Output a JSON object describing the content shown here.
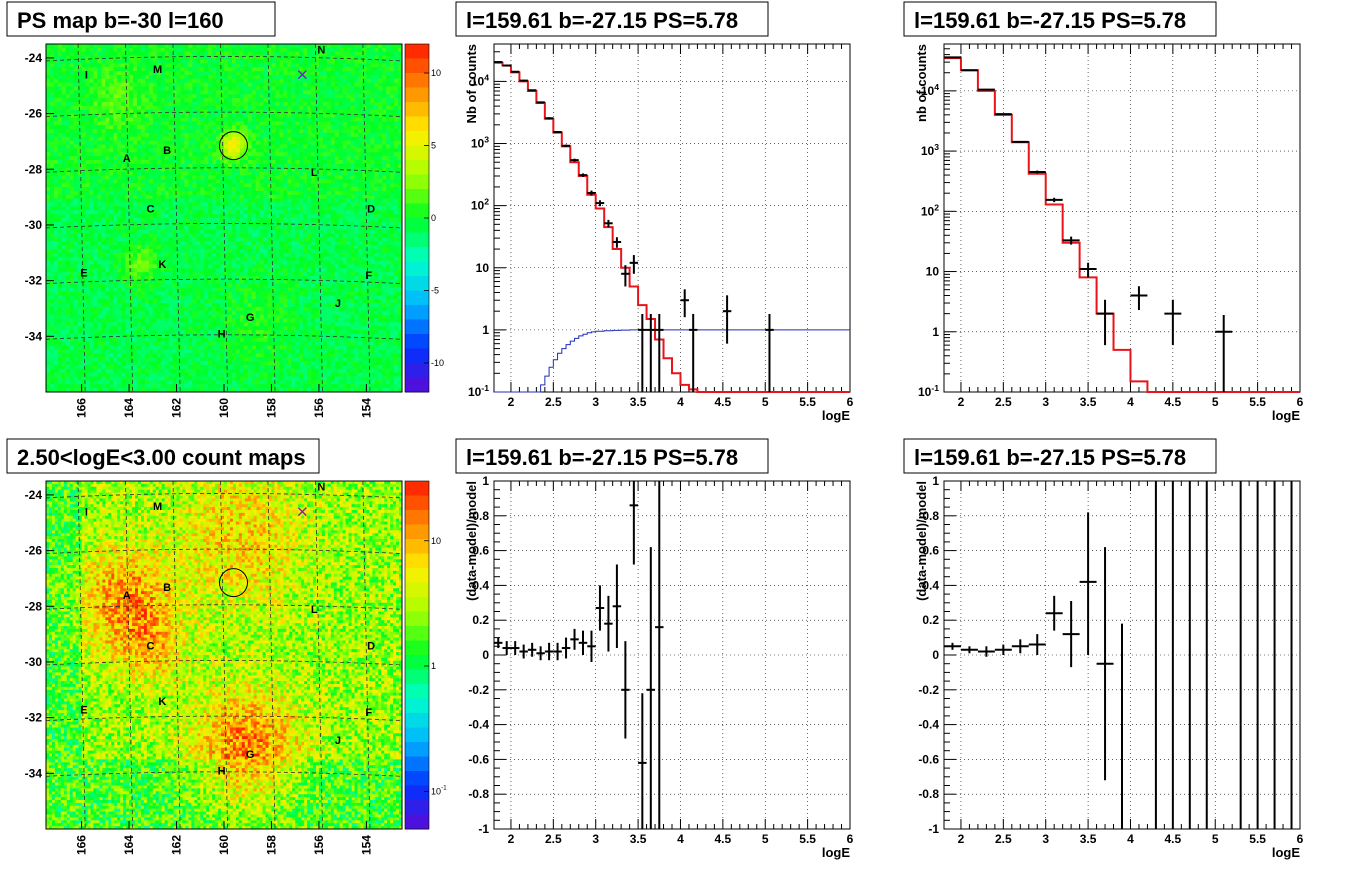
{
  "chart_data": [
    {
      "type": "heatmap",
      "title": "PS map b=-30 l=160",
      "xticks": [
        "166",
        "164",
        "162",
        "160",
        "158",
        "156",
        "154"
      ],
      "yticks": [
        "-24",
        "-26",
        "-28",
        "-30",
        "-32",
        "-34"
      ],
      "xlim": [
        167.5,
        152.5
      ],
      "ylim": [
        -36,
        -23.5
      ],
      "colorbar_ticks": [
        "10",
        "5",
        "0",
        "-5",
        "-10"
      ],
      "colorbar_range": [
        -12,
        12
      ],
      "colormap": [
        "#5c0ad6",
        "#0033ff",
        "#00b4ff",
        "#00ffcc",
        "#00ff22",
        "#aaff00",
        "#ffee00",
        "#ff8800",
        "#ff1a00"
      ],
      "regions": [
        {
          "label": "I",
          "l": 165.8,
          "b": -24.6
        },
        {
          "label": "M",
          "l": 162.8,
          "b": -24.4
        },
        {
          "label": "N",
          "l": 155.9,
          "b": -23.7
        },
        {
          "label": "A",
          "l": 164.1,
          "b": -27.6
        },
        {
          "label": "B",
          "l": 162.4,
          "b": -27.3
        },
        {
          "label": "L",
          "l": 156.2,
          "b": -28.1
        },
        {
          "label": "C",
          "l": 163.1,
          "b": -29.4
        },
        {
          "label": "D",
          "l": 153.8,
          "b": -29.4
        },
        {
          "label": "E",
          "l": 165.9,
          "b": -31.7
        },
        {
          "label": "K",
          "l": 162.6,
          "b": -31.4
        },
        {
          "label": "F",
          "l": 153.9,
          "b": -31.8
        },
        {
          "label": "J",
          "l": 155.2,
          "b": -32.8
        },
        {
          "label": "G",
          "l": 158.9,
          "b": -33.3
        },
        {
          "label": "H",
          "l": 160.1,
          "b": -33.9
        }
      ],
      "circle": {
        "l": 159.6,
        "b": -27.15
      },
      "cross": {
        "l": 156.7,
        "b": -24.6
      }
    },
    {
      "type": "line",
      "title": "l=159.61 b=-27.15 PS=5.78",
      "xlabel": "logE",
      "ylabel": "Nb of counts",
      "yscale": "log",
      "xlim": [
        1.8,
        6
      ],
      "ylim": [
        0.1,
        40000
      ],
      "xticks": [
        "2",
        "2.5",
        "3",
        "3.5",
        "4",
        "4.5",
        "5",
        "5.5",
        "6"
      ],
      "yticks": [
        "10^-1",
        "1",
        "10",
        "10^2",
        "10^3",
        "10^4"
      ],
      "model_step": {
        "edges": [
          1.8,
          1.9,
          2.0,
          2.1,
          2.2,
          2.3,
          2.4,
          2.5,
          2.6,
          2.7,
          2.8,
          2.9,
          3.0,
          3.1,
          3.2,
          3.3,
          3.4,
          3.5,
          3.6,
          3.7,
          3.8,
          3.9,
          4.0,
          4.1,
          4.2,
          6.0
        ],
        "values": [
          20000,
          18000,
          14000,
          10000,
          7000,
          4500,
          2500,
          1500,
          900,
          500,
          300,
          150,
          90,
          45,
          20,
          10,
          5,
          2.5,
          1.5,
          0.7,
          0.35,
          0.2,
          0.13,
          0.11,
          0.1
        ]
      },
      "psf_step": {
        "edges": [
          1.8,
          2.35,
          2.4,
          2.45,
          2.5,
          2.55,
          2.6,
          2.65,
          2.7,
          2.75,
          2.8,
          2.85,
          2.9,
          2.95,
          3.0,
          3.1,
          3.2,
          3.3,
          3.4,
          6.0
        ],
        "values": [
          0.1,
          0.13,
          0.18,
          0.25,
          0.33,
          0.42,
          0.5,
          0.58,
          0.66,
          0.73,
          0.8,
          0.85,
          0.9,
          0.93,
          0.95,
          0.97,
          0.98,
          0.99,
          1.0
        ]
      },
      "points": [
        {
          "x": 1.85,
          "y": 20500,
          "lo": 20000,
          "hi": 21000,
          "xerr": 0.05
        },
        {
          "x": 1.95,
          "y": 18000,
          "lo": 17600,
          "hi": 18400,
          "xerr": 0.05
        },
        {
          "x": 2.05,
          "y": 14300,
          "lo": 14000,
          "hi": 14600,
          "xerr": 0.05
        },
        {
          "x": 2.15,
          "y": 10300,
          "lo": 10000,
          "hi": 10600,
          "xerr": 0.05
        },
        {
          "x": 2.25,
          "y": 7200,
          "lo": 7000,
          "hi": 7400,
          "xerr": 0.05
        },
        {
          "x": 2.35,
          "y": 4600,
          "lo": 4450,
          "hi": 4750,
          "xerr": 0.05
        },
        {
          "x": 2.45,
          "y": 2550,
          "lo": 2450,
          "hi": 2650,
          "xerr": 0.05
        },
        {
          "x": 2.55,
          "y": 1530,
          "lo": 1480,
          "hi": 1580,
          "xerr": 0.05
        },
        {
          "x": 2.65,
          "y": 920,
          "lo": 880,
          "hi": 960,
          "xerr": 0.05
        },
        {
          "x": 2.75,
          "y": 540,
          "lo": 510,
          "hi": 570,
          "xerr": 0.05
        },
        {
          "x": 2.85,
          "y": 310,
          "lo": 290,
          "hi": 330,
          "xerr": 0.05
        },
        {
          "x": 2.95,
          "y": 160,
          "lo": 145,
          "hi": 175,
          "xerr": 0.05
        },
        {
          "x": 3.05,
          "y": 110,
          "lo": 98,
          "hi": 122,
          "xerr": 0.05
        },
        {
          "x": 3.15,
          "y": 52,
          "lo": 45,
          "hi": 59,
          "xerr": 0.05
        },
        {
          "x": 3.25,
          "y": 26,
          "lo": 21,
          "hi": 31,
          "xerr": 0.05
        },
        {
          "x": 3.35,
          "y": 8,
          "lo": 5,
          "hi": 11,
          "xerr": 0.05
        },
        {
          "x": 3.45,
          "y": 12,
          "lo": 8,
          "hi": 16,
          "xerr": 0.05
        },
        {
          "x": 3.55,
          "y": 1,
          "lo": 0.1,
          "hi": 1.8,
          "xerr": 0.05
        },
        {
          "x": 3.65,
          "y": 1,
          "lo": 0.1,
          "hi": 1.8,
          "xerr": 0.05
        },
        {
          "x": 3.75,
          "y": 1,
          "lo": 0.1,
          "hi": 1.8,
          "xerr": 0.05
        },
        {
          "x": 4.05,
          "y": 3,
          "lo": 1.6,
          "hi": 4.5,
          "xerr": 0.05
        },
        {
          "x": 4.15,
          "y": 1,
          "lo": 0.1,
          "hi": 1.8,
          "xerr": 0.05
        },
        {
          "x": 4.55,
          "y": 2,
          "lo": 0.6,
          "hi": 3.6,
          "xerr": 0.05
        },
        {
          "x": 5.05,
          "y": 1,
          "lo": 0.1,
          "hi": 1.8,
          "xerr": 0.05
        }
      ]
    },
    {
      "type": "line",
      "title": "l=159.61 b=-27.15 PS=5.78",
      "xlabel": "logE",
      "ylabel": "nb of counts",
      "yscale": "log",
      "xlim": [
        1.8,
        6
      ],
      "ylim": [
        0.1,
        60000
      ],
      "xticks": [
        "2",
        "2.5",
        "3",
        "3.5",
        "4",
        "4.5",
        "5",
        "5.5",
        "6"
      ],
      "yticks": [
        "10^-1",
        "1",
        "10",
        "10^2",
        "10^3",
        "10^4"
      ],
      "model_step": {
        "edges": [
          1.8,
          2.0,
          2.2,
          2.4,
          2.6,
          2.8,
          3.0,
          3.2,
          3.4,
          3.6,
          3.8,
          4.0,
          4.2,
          6.0
        ],
        "values": [
          35000,
          22000,
          10000,
          4000,
          1400,
          420,
          130,
          30,
          8,
          2,
          0.5,
          0.15,
          0.1
        ]
      },
      "points": [
        {
          "x": 1.9,
          "y": 36000,
          "lo": 35500,
          "hi": 36500,
          "xerr": 0.1
        },
        {
          "x": 2.1,
          "y": 22000,
          "lo": 21600,
          "hi": 22400,
          "xerr": 0.1
        },
        {
          "x": 2.3,
          "y": 10500,
          "lo": 10200,
          "hi": 10800,
          "xerr": 0.1
        },
        {
          "x": 2.5,
          "y": 4100,
          "lo": 3980,
          "hi": 4220,
          "xerr": 0.1
        },
        {
          "x": 2.7,
          "y": 1420,
          "lo": 1370,
          "hi": 1470,
          "xerr": 0.1
        },
        {
          "x": 2.9,
          "y": 450,
          "lo": 425,
          "hi": 475,
          "xerr": 0.1
        },
        {
          "x": 3.1,
          "y": 155,
          "lo": 142,
          "hi": 168,
          "xerr": 0.1
        },
        {
          "x": 3.3,
          "y": 33,
          "lo": 28,
          "hi": 38,
          "xerr": 0.1
        },
        {
          "x": 3.5,
          "y": 11,
          "lo": 8,
          "hi": 14,
          "xerr": 0.1
        },
        {
          "x": 3.7,
          "y": 2,
          "lo": 0.6,
          "hi": 3.4,
          "xerr": 0.1
        },
        {
          "x": 4.1,
          "y": 4,
          "lo": 2.3,
          "hi": 5.7,
          "xerr": 0.1
        },
        {
          "x": 4.5,
          "y": 2,
          "lo": 0.6,
          "hi": 3.4,
          "xerr": 0.1
        },
        {
          "x": 5.1,
          "y": 1,
          "lo": 0.1,
          "hi": 1.9,
          "xerr": 0.1
        }
      ]
    },
    {
      "type": "heatmap",
      "title": "2.50<logE<3.00 count maps",
      "xticks": [
        "166",
        "164",
        "162",
        "160",
        "158",
        "156",
        "154"
      ],
      "yticks": [
        "-24",
        "-26",
        "-28",
        "-30",
        "-32",
        "-34"
      ],
      "xlim": [
        167.5,
        152.5
      ],
      "ylim": [
        -36,
        -23.5
      ],
      "colorbar_ticks": [
        "10",
        "1",
        "10^-1"
      ],
      "colorbar_range": [
        0.05,
        30
      ],
      "colormap": [
        "#5c0ad6",
        "#0033ff",
        "#00b4ff",
        "#00ffcc",
        "#00ff22",
        "#aaff00",
        "#ffee00",
        "#ff8800",
        "#ff1a00"
      ],
      "regions": [
        {
          "label": "I",
          "l": 165.8,
          "b": -24.6
        },
        {
          "label": "M",
          "l": 162.8,
          "b": -24.4
        },
        {
          "label": "N",
          "l": 155.9,
          "b": -23.7
        },
        {
          "label": "A",
          "l": 164.1,
          "b": -27.6
        },
        {
          "label": "B",
          "l": 162.4,
          "b": -27.3
        },
        {
          "label": "L",
          "l": 156.2,
          "b": -28.1
        },
        {
          "label": "C",
          "l": 163.1,
          "b": -29.4
        },
        {
          "label": "D",
          "l": 153.8,
          "b": -29.4
        },
        {
          "label": "E",
          "l": 165.9,
          "b": -31.7
        },
        {
          "label": "K",
          "l": 162.6,
          "b": -31.4
        },
        {
          "label": "F",
          "l": 153.9,
          "b": -31.8
        },
        {
          "label": "J",
          "l": 155.2,
          "b": -32.8
        },
        {
          "label": "G",
          "l": 158.9,
          "b": -33.3
        },
        {
          "label": "H",
          "l": 160.1,
          "b": -33.9
        }
      ],
      "circle": {
        "l": 159.6,
        "b": -27.15
      },
      "cross": {
        "l": 156.7,
        "b": -24.6
      }
    },
    {
      "type": "scatter",
      "title": "l=159.61 b=-27.15 PS=5.78",
      "xlabel": "logE",
      "ylabel": "(data-model)/model",
      "xlim": [
        1.8,
        6
      ],
      "ylim": [
        -1,
        1
      ],
      "xticks": [
        "2",
        "2.5",
        "3",
        "3.5",
        "4",
        "4.5",
        "5",
        "5.5",
        "6"
      ],
      "yticks": [
        "-1",
        "-0.8",
        "-0.6",
        "-0.4",
        "-0.2",
        "0",
        "0.2",
        "0.4",
        "0.6",
        "0.8",
        "1"
      ],
      "points": [
        {
          "x": 1.85,
          "y": 0.07,
          "lo": 0.04,
          "hi": 0.1,
          "xerr": 0.05
        },
        {
          "x": 1.95,
          "y": 0.04,
          "lo": 0.0,
          "hi": 0.08,
          "xerr": 0.05
        },
        {
          "x": 2.05,
          "y": 0.04,
          "lo": 0.0,
          "hi": 0.08,
          "xerr": 0.05
        },
        {
          "x": 2.15,
          "y": 0.02,
          "lo": -0.02,
          "hi": 0.06,
          "xerr": 0.05
        },
        {
          "x": 2.25,
          "y": 0.03,
          "lo": -0.01,
          "hi": 0.07,
          "xerr": 0.05
        },
        {
          "x": 2.35,
          "y": 0.01,
          "lo": -0.03,
          "hi": 0.05,
          "xerr": 0.05
        },
        {
          "x": 2.45,
          "y": 0.02,
          "lo": -0.03,
          "hi": 0.07,
          "xerr": 0.05
        },
        {
          "x": 2.55,
          "y": 0.02,
          "lo": -0.03,
          "hi": 0.07,
          "xerr": 0.05
        },
        {
          "x": 2.65,
          "y": 0.04,
          "lo": -0.02,
          "hi": 0.1,
          "xerr": 0.05
        },
        {
          "x": 2.75,
          "y": 0.09,
          "lo": 0.03,
          "hi": 0.15,
          "xerr": 0.05
        },
        {
          "x": 2.85,
          "y": 0.07,
          "lo": 0.0,
          "hi": 0.14,
          "xerr": 0.05
        },
        {
          "x": 2.95,
          "y": 0.05,
          "lo": -0.04,
          "hi": 0.14,
          "xerr": 0.05
        },
        {
          "x": 3.05,
          "y": 0.27,
          "lo": 0.14,
          "hi": 0.4,
          "xerr": 0.05
        },
        {
          "x": 3.15,
          "y": 0.18,
          "lo": 0.02,
          "hi": 0.34,
          "xerr": 0.05
        },
        {
          "x": 3.25,
          "y": 0.28,
          "lo": 0.04,
          "hi": 0.52,
          "xerr": 0.05
        },
        {
          "x": 3.35,
          "y": -0.2,
          "lo": -0.48,
          "hi": 0.08,
          "xerr": 0.05
        },
        {
          "x": 3.45,
          "y": 0.86,
          "lo": 0.52,
          "hi": 1.0,
          "xerr": 0.05
        },
        {
          "x": 3.55,
          "y": -0.62,
          "lo": -1.0,
          "hi": -0.22,
          "xerr": 0.05
        },
        {
          "x": 3.65,
          "y": -0.2,
          "lo": -1.0,
          "hi": 0.62,
          "xerr": 0.05
        },
        {
          "x": 3.75,
          "y": 0.16,
          "lo": -1.0,
          "hi": 1.0,
          "xerr": 0.05
        }
      ]
    },
    {
      "type": "scatter",
      "title": "l=159.61 b=-27.15 PS=5.78",
      "xlabel": "logE",
      "ylabel": "(data-model)/model",
      "xlim": [
        1.8,
        6
      ],
      "ylim": [
        -1,
        1
      ],
      "xticks": [
        "2",
        "2.5",
        "3",
        "3.5",
        "4",
        "4.5",
        "5",
        "5.5",
        "6"
      ],
      "yticks": [
        "-1",
        "-0.8",
        "-0.6",
        "-0.4",
        "-0.2",
        "0",
        "0.2",
        "0.4",
        "0.6",
        "0.8",
        "1"
      ],
      "points": [
        {
          "x": 1.9,
          "y": 0.05,
          "lo": 0.03,
          "hi": 0.07,
          "xerr": 0.1
        },
        {
          "x": 2.1,
          "y": 0.03,
          "lo": 0.01,
          "hi": 0.05,
          "xerr": 0.1
        },
        {
          "x": 2.3,
          "y": 0.02,
          "lo": -0.01,
          "hi": 0.05,
          "xerr": 0.1
        },
        {
          "x": 2.5,
          "y": 0.03,
          "lo": 0.0,
          "hi": 0.06,
          "xerr": 0.1
        },
        {
          "x": 2.7,
          "y": 0.05,
          "lo": 0.01,
          "hi": 0.09,
          "xerr": 0.1
        },
        {
          "x": 2.9,
          "y": 0.06,
          "lo": 0.0,
          "hi": 0.12,
          "xerr": 0.1
        },
        {
          "x": 3.1,
          "y": 0.24,
          "lo": 0.14,
          "hi": 0.34,
          "xerr": 0.1
        },
        {
          "x": 3.3,
          "y": 0.12,
          "lo": -0.07,
          "hi": 0.31,
          "xerr": 0.1
        },
        {
          "x": 3.5,
          "y": 0.42,
          "lo": 0.0,
          "hi": 0.82,
          "xerr": 0.1
        },
        {
          "x": 3.7,
          "y": -0.05,
          "lo": -0.72,
          "hi": 0.62,
          "xerr": 0.1
        },
        {
          "x": 3.9,
          "y": null,
          "lo": -1.0,
          "hi": 0.18,
          "xerr": 0.0
        },
        {
          "x": 4.3,
          "y": null,
          "lo": -1.0,
          "hi": 1.0,
          "xerr": 0.0
        },
        {
          "x": 4.5,
          "y": null,
          "lo": -1.0,
          "hi": 1.0,
          "xerr": 0.0
        },
        {
          "x": 4.7,
          "y": null,
          "lo": -1.0,
          "hi": 1.0,
          "xerr": 0.0
        },
        {
          "x": 4.9,
          "y": null,
          "lo": -1.0,
          "hi": 1.0,
          "xerr": 0.0
        },
        {
          "x": 5.3,
          "y": null,
          "lo": -1.0,
          "hi": 1.0,
          "xerr": 0.0
        },
        {
          "x": 5.5,
          "y": null,
          "lo": -1.0,
          "hi": 1.0,
          "xerr": 0.0
        },
        {
          "x": 5.7,
          "y": null,
          "lo": -1.0,
          "hi": 1.0,
          "xerr": 0.0
        },
        {
          "x": 5.9,
          "y": null,
          "lo": -1.0,
          "hi": 1.0,
          "xerr": 0.0
        }
      ]
    }
  ]
}
